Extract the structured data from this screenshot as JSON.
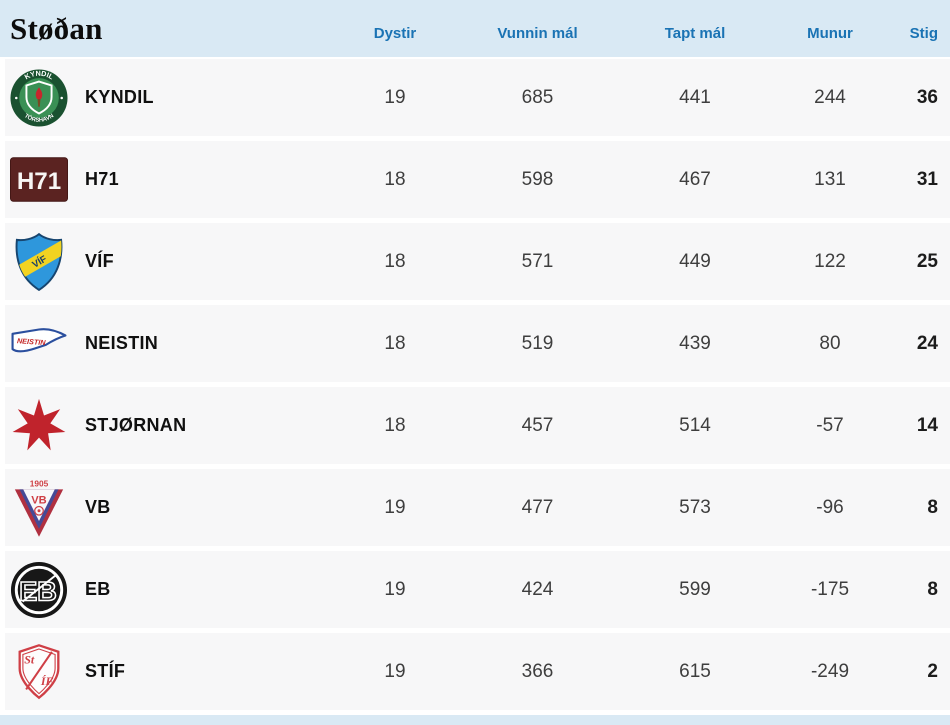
{
  "page": {
    "title": "Støðan",
    "accent_colors": {
      "header_bg": "#d9e9f4",
      "header_text": "#1a73b4",
      "row_bg": "#f7f7f8"
    }
  },
  "table": {
    "columns": [
      "Dystir",
      "Vunnin mál",
      "Tapt mál",
      "Munur",
      "Stig"
    ],
    "rows": [
      {
        "team": "KYNDIL",
        "logo": "kyndil-crest",
        "dystir": "19",
        "vunnin": "685",
        "tapt": "441",
        "munur": "244",
        "stig": "36"
      },
      {
        "team": "H71",
        "logo": "h71-crest",
        "dystir": "18",
        "vunnin": "598",
        "tapt": "467",
        "munur": "131",
        "stig": "31"
      },
      {
        "team": "VÍF",
        "logo": "vif-crest",
        "dystir": "18",
        "vunnin": "571",
        "tapt": "449",
        "munur": "122",
        "stig": "25"
      },
      {
        "team": "NEISTIN",
        "logo": "neistin-crest",
        "dystir": "18",
        "vunnin": "519",
        "tapt": "439",
        "munur": "80",
        "stig": "24"
      },
      {
        "team": "STJØRNAN",
        "logo": "stjornan-crest",
        "dystir": "18",
        "vunnin": "457",
        "tapt": "514",
        "munur": "-57",
        "stig": "14"
      },
      {
        "team": "VB",
        "logo": "vb-crest",
        "dystir": "19",
        "vunnin": "477",
        "tapt": "573",
        "munur": "-96",
        "stig": "8"
      },
      {
        "team": "EB",
        "logo": "eb-crest",
        "dystir": "19",
        "vunnin": "424",
        "tapt": "599",
        "munur": "-175",
        "stig": "8"
      },
      {
        "team": "STÍF",
        "logo": "stif-crest",
        "dystir": "19",
        "vunnin": "366",
        "tapt": "615",
        "munur": "-249",
        "stig": "2"
      }
    ],
    "logo_texts": {
      "kyndil_top": "KYNDIL",
      "kyndil_bottom": "TÓRSHAVN",
      "h71": "H71",
      "vif": "VÍF",
      "neistin": "NEISTIN",
      "vb_year": "1905",
      "vb": "VB",
      "eb": "EB",
      "stif_top": "St",
      "stif_bottom": "ÍF"
    }
  }
}
